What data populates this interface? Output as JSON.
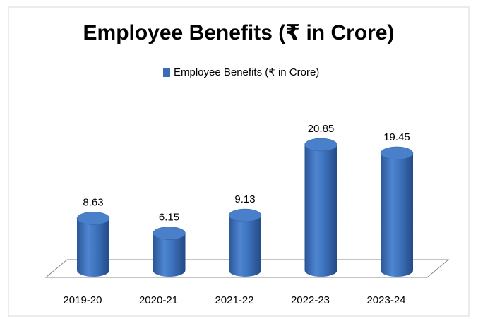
{
  "chart_data": {
    "type": "bar",
    "title": "Employee Benefits (₹ in Crore)",
    "categories": [
      "2019-20",
      "2020-21",
      "2021-22",
      "2022-23",
      "2023-24"
    ],
    "series": [
      {
        "name": "Employee Benefits (₹ in Crore)",
        "color": "#3a6db5",
        "values": [
          8.63,
          6.15,
          9.13,
          20.85,
          19.45
        ]
      }
    ]
  }
}
